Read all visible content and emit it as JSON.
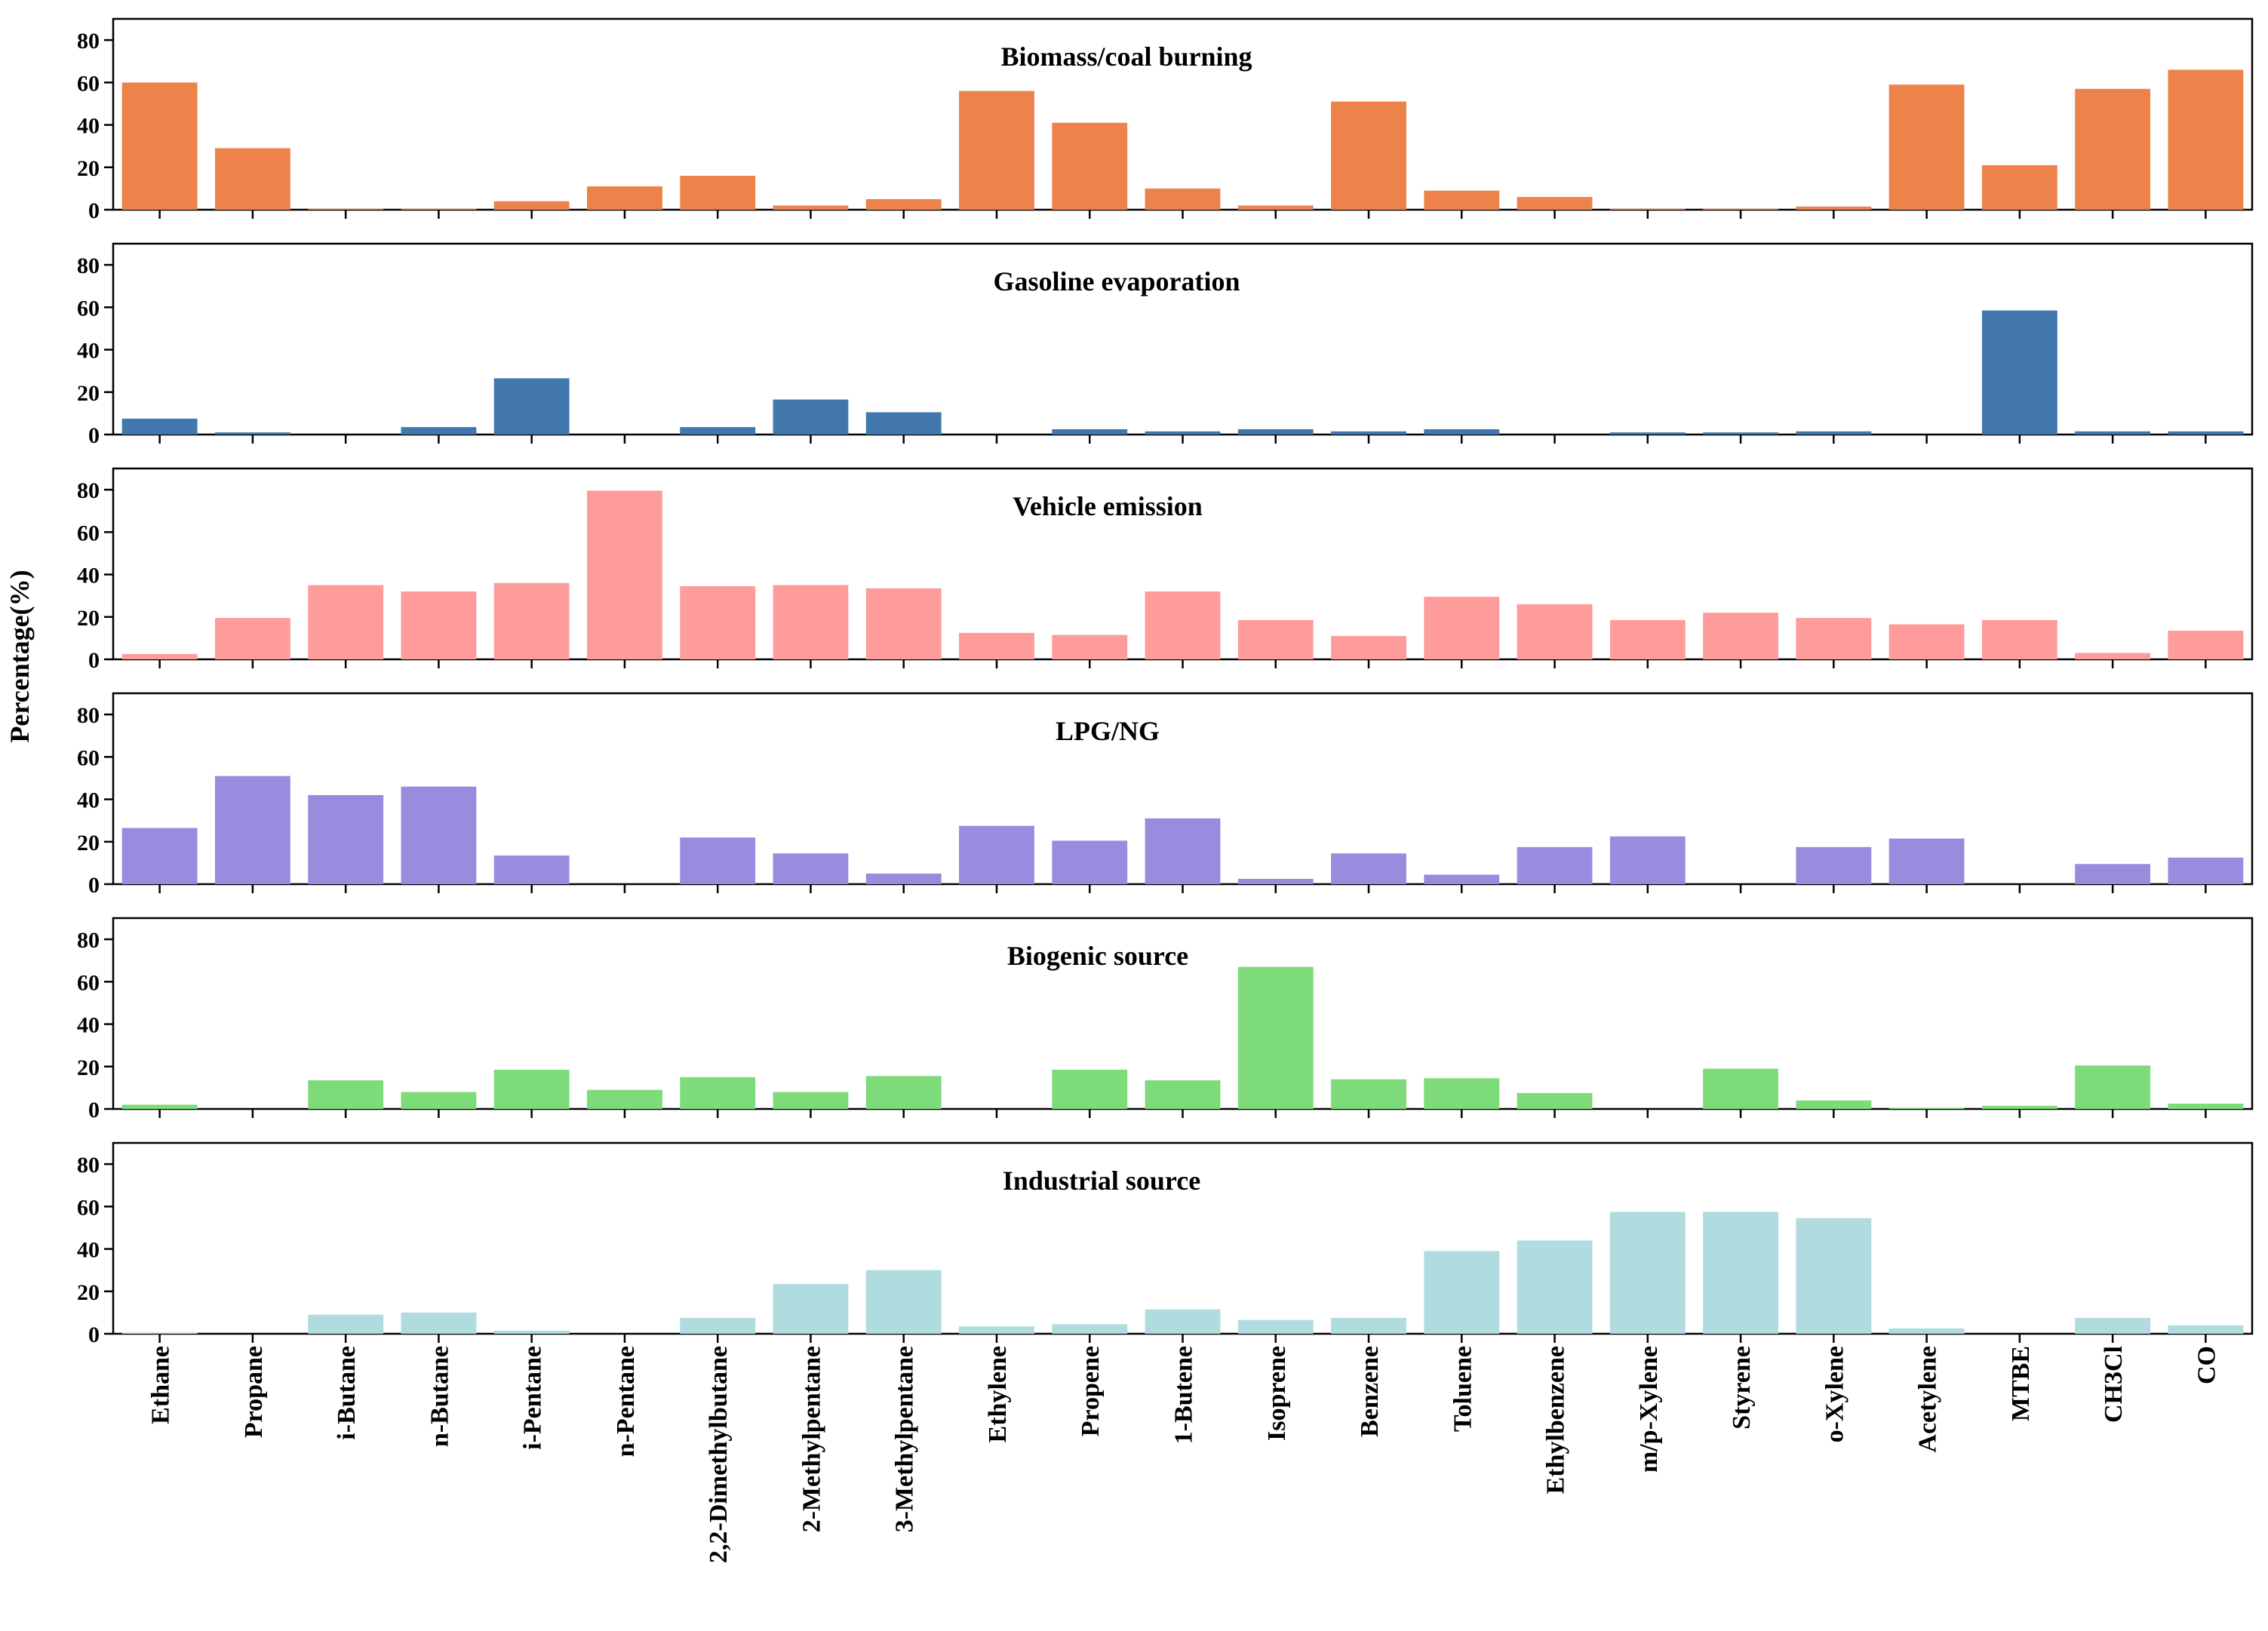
{
  "chart_data": {
    "type": "bar",
    "layout": "stacked-panels",
    "ylabel": "Percentage(%)",
    "ylim": [
      0,
      90
    ],
    "yticks": [
      0,
      20,
      40,
      60,
      80
    ],
    "categories": [
      "Ethane",
      "Propane",
      "i-Butane",
      "n-Butane",
      "i-Pentane",
      "n-Pentane",
      "2,2-Dimethylbutane",
      "2-Methylpentane",
      "3-Methylpentane",
      "Ethylene",
      "Propene",
      "1-Butene",
      "Isoprene",
      "Benzene",
      "Toluene",
      "Ethylbenzene",
      "m/p-Xylene",
      "Styrene",
      "o-Xylene",
      "Acetylene",
      "MTBE",
      "CH3Cl",
      "CO"
    ],
    "series": [
      {
        "name": "Biomass/coal burning",
        "color": "#ED834A",
        "values": [
          60,
          29,
          0.5,
          0.5,
          4,
          11,
          16,
          2,
          5,
          56,
          41,
          10,
          2,
          51,
          9,
          6,
          0.5,
          0.5,
          1.5,
          59,
          21,
          57,
          66
        ]
      },
      {
        "name": "Gasoline evaporation",
        "color": "#4177AD",
        "values": [
          7.5,
          1,
          0,
          3.5,
          26.5,
          0,
          3.5,
          16.5,
          10.5,
          0,
          2.5,
          1.5,
          2.5,
          1.5,
          2.5,
          0,
          1,
          1,
          1.5,
          0,
          58.5,
          1.5,
          1.5
        ]
      },
      {
        "name": "Vehicle emission",
        "color": "#FE9B9B",
        "values": [
          2.5,
          19.5,
          35,
          32,
          36,
          79.5,
          34.5,
          35,
          33.5,
          12.5,
          11.5,
          32,
          18.5,
          11,
          29.5,
          26,
          18.5,
          22,
          19.5,
          16.5,
          18.5,
          3,
          13.5
        ]
      },
      {
        "name": "LPG/NG",
        "color": "#9B8BDF",
        "values": [
          26.5,
          51,
          42,
          46,
          13.5,
          0,
          22,
          14.5,
          5,
          27.5,
          20.5,
          31,
          2.5,
          14.5,
          4.5,
          17.5,
          22.5,
          0,
          17.5,
          21.5,
          0,
          9.5,
          12.5
        ]
      },
      {
        "name": "Biogenic source",
        "color": "#7EDB7A",
        "values": [
          2,
          0,
          13.5,
          8,
          18.5,
          9,
          15,
          8,
          15.5,
          0,
          18.5,
          13.5,
          67,
          14,
          14.5,
          7.5,
          0,
          19,
          4,
          0.5,
          1.5,
          20.5,
          2.5
        ]
      },
      {
        "name": "Industrial source",
        "color": "#B0DCE0",
        "values": [
          0.5,
          0,
          9,
          10,
          1.5,
          0,
          7.5,
          23.5,
          30,
          3.5,
          4.5,
          11.5,
          6.5,
          7.5,
          39,
          44,
          57.5,
          57.5,
          54.5,
          2.5,
          0,
          7.5,
          4
        ]
      }
    ]
  }
}
